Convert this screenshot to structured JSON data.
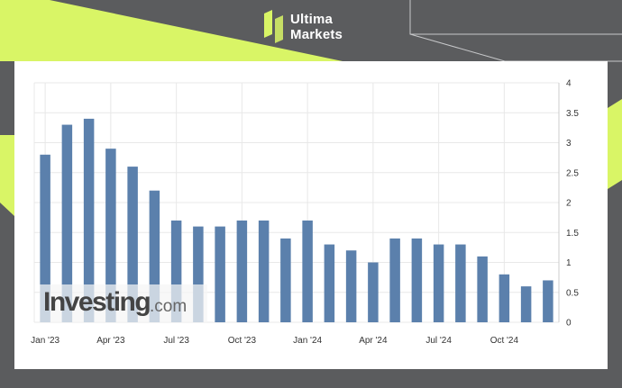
{
  "brand": {
    "logo_icon": "ultima-markets-logo-icon",
    "name_line1": "Ultima",
    "name_line2": "Markets",
    "accent_color": "#d9f566"
  },
  "watermark": {
    "text_main": "Investing",
    "text_suffix": ".com"
  },
  "chart_data": {
    "type": "bar",
    "title": "",
    "xlabel": "",
    "ylabel": "",
    "categories": [
      "Jan '23",
      "Feb '23",
      "Mar '23",
      "Apr '23",
      "May '23",
      "Jun '23",
      "Jul '23",
      "Aug '23",
      "Sep '23",
      "Oct '23",
      "Nov '23",
      "Dec '23",
      "Jan '24",
      "Feb '24",
      "Mar '24",
      "Apr '24",
      "May '24",
      "Jun '24",
      "Jul '24",
      "Aug '24",
      "Sep '24",
      "Oct '24",
      "Nov '24",
      "Dec '24"
    ],
    "values": [
      2.8,
      3.3,
      3.4,
      2.9,
      2.6,
      2.2,
      1.7,
      1.6,
      1.6,
      1.7,
      1.7,
      1.4,
      1.7,
      1.3,
      1.2,
      1.0,
      1.4,
      1.4,
      1.3,
      1.3,
      1.1,
      0.8,
      0.6,
      0.7
    ],
    "x_tick_labels": [
      "Jan '23",
      "Apr '23",
      "Jul '23",
      "Oct '23",
      "Jan '24",
      "Apr '24",
      "Jul '24",
      "Oct '24"
    ],
    "y_tick_labels": [
      "0",
      "0.5",
      "1",
      "1.5",
      "2",
      "2.5",
      "3",
      "3.5",
      "4"
    ],
    "ylim": [
      0,
      4
    ],
    "y_axis_side": "right",
    "grid": true,
    "bar_color": "#5b80ac"
  }
}
